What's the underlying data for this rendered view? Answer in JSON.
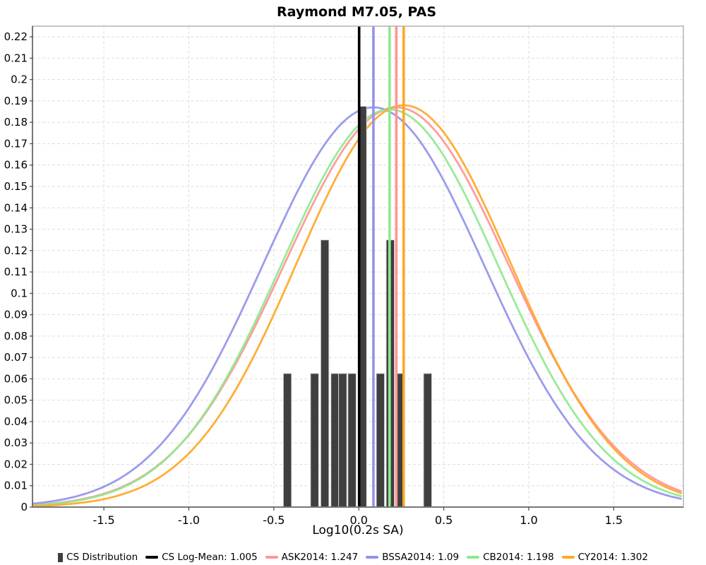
{
  "chart_data": {
    "type": "histogram+gaussian-curves",
    "title": "Raymond M7.05, PAS",
    "xlabel": "Log10(0.2s SA)",
    "ylabel": "",
    "xlim": [
      -1.92,
      1.91
    ],
    "ylim": [
      0,
      0.225
    ],
    "grid": "dashed",
    "x_ticks": [
      -1.5,
      -1.0,
      -0.5,
      0.0,
      0.5,
      1.0,
      1.5
    ],
    "x_tick_labels": [
      "-1.5",
      "-1.0",
      "-0.5",
      "0.0",
      "0.5",
      "1.0",
      "1.5"
    ],
    "y_tick_step": 0.01,
    "y_tick_labels": [
      "0",
      "0.01",
      "0.02",
      "0.03",
      "0.04",
      "0.05",
      "0.06",
      "0.07",
      "0.08",
      "0.09",
      "0.1",
      "0.11",
      "0.12",
      "0.13",
      "0.14",
      "0.15",
      "0.16",
      "0.17",
      "0.18",
      "0.19",
      "0.2",
      "0.21",
      "0.22"
    ],
    "histogram": {
      "label": "CS Distribution",
      "color": "#3f3f3f",
      "bar_edge_color": "#d9d9d9",
      "bar_width": 0.048,
      "bars": [
        {
          "x": -0.42,
          "h": 0.0625
        },
        {
          "x": -0.26,
          "h": 0.0625
        },
        {
          "x": -0.2,
          "h": 0.125
        },
        {
          "x": -0.14,
          "h": 0.0625
        },
        {
          "x": -0.095,
          "h": 0.0625
        },
        {
          "x": -0.04,
          "h": 0.0625
        },
        {
          "x": 0.022,
          "h": 0.1875
        },
        {
          "x": 0.127,
          "h": 0.0625
        },
        {
          "x": 0.185,
          "h": 0.125
        },
        {
          "x": 0.24,
          "h": 0.0625
        },
        {
          "x": 0.405,
          "h": 0.0625
        }
      ]
    },
    "mean_line": {
      "label": "CS Log-Mean",
      "value": 1.005,
      "line_x": 0.002,
      "color": "#000000"
    },
    "models": [
      {
        "label": "ASK2014",
        "value": 1.247,
        "mean": 0.221,
        "sigma": 0.66,
        "peak": 0.187,
        "color": "#ff9595"
      },
      {
        "label": "BSSA2014",
        "value": 1.09,
        "mean": 0.086,
        "sigma": 0.65,
        "peak": 0.187,
        "color": "#9393eb"
      },
      {
        "label": "CB2014",
        "value": 1.198,
        "mean": 0.181,
        "sigma": 0.64,
        "peak": 0.186,
        "color": "#8fe98f"
      },
      {
        "label": "CY2014",
        "value": 1.302,
        "mean": 0.264,
        "sigma": 0.63,
        "peak": 0.188,
        "color": "#ffa726"
      }
    ],
    "legend": {
      "items": [
        {
          "marker": "bar",
          "color": "#3f3f3f",
          "text": "CS Distribution"
        },
        {
          "marker": "line",
          "color": "#000000",
          "text": "CS Log-Mean: 1.005"
        },
        {
          "marker": "line",
          "color": "#ff9595",
          "text": "ASK2014: 1.247"
        },
        {
          "marker": "line",
          "color": "#9393eb",
          "text": "BSSA2014: 1.09"
        },
        {
          "marker": "line",
          "color": "#8fe98f",
          "text": "CB2014: 1.198"
        },
        {
          "marker": "line",
          "color": "#ffa726",
          "text": "CY2014: 1.302"
        }
      ]
    },
    "style": {
      "grid_color": "#dedede",
      "frame_color": "#b3b3b3",
      "left_spine_color": "#555555",
      "bottom_spine_color": "#777777",
      "tick_color": "#555555"
    }
  }
}
